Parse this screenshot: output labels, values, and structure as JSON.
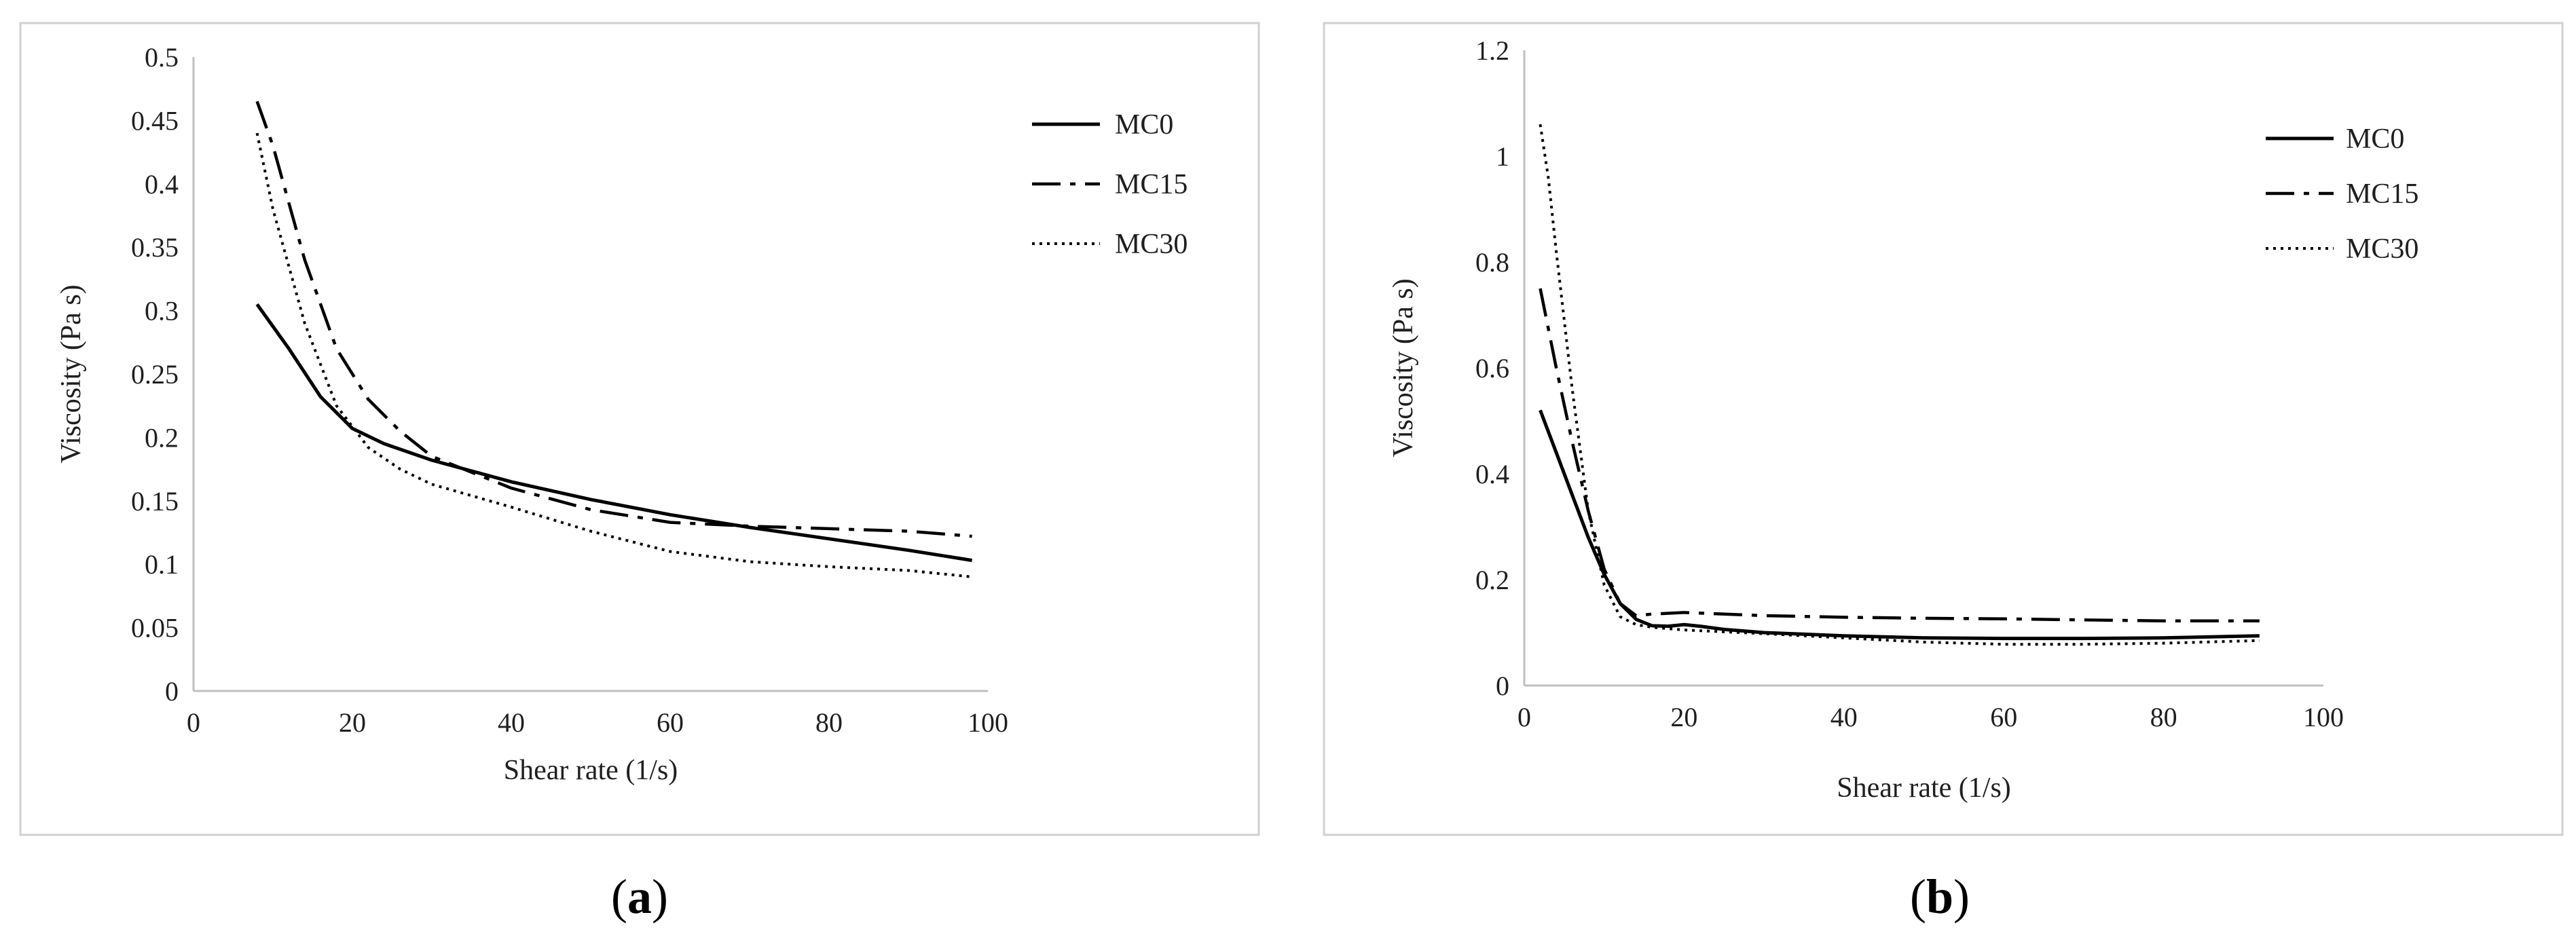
{
  "chart_data": [
    {
      "type": "line",
      "panel_label": "a",
      "title": "",
      "xlabel": "Shear rate (1/s)",
      "ylabel": "Viscosity (Pa s)",
      "xlim": [
        0,
        100
      ],
      "ylim": [
        0,
        0.5
      ],
      "xticks": [
        0,
        20,
        40,
        60,
        80,
        100
      ],
      "yticks": [
        0,
        0.05,
        0.1,
        0.15,
        0.2,
        0.25,
        0.3,
        0.35,
        0.4,
        0.45,
        0.5
      ],
      "xtick_labels": [
        "0",
        "20",
        "40",
        "60",
        "80",
        "100"
      ],
      "ytick_labels": [
        "0",
        "0.05",
        "0.1",
        "0.15",
        "0.2",
        "0.25",
        "0.3",
        "0.35",
        "0.4",
        "0.45",
        "0.5"
      ],
      "grid": false,
      "legend_position": "top-right",
      "series": [
        {
          "name": "MC0",
          "style": "solid",
          "x": [
            8,
            12,
            16,
            20,
            24,
            30,
            40,
            50,
            60,
            70,
            80,
            90,
            98
          ],
          "y": [
            0.305,
            0.27,
            0.232,
            0.207,
            0.195,
            0.182,
            0.165,
            0.151,
            0.139,
            0.129,
            0.12,
            0.111,
            0.103
          ]
        },
        {
          "name": "MC15",
          "style": "dashdot",
          "x": [
            8,
            10,
            14,
            18,
            22,
            26,
            30,
            40,
            50,
            60,
            70,
            80,
            90,
            98
          ],
          "y": [
            0.465,
            0.43,
            0.34,
            0.27,
            0.23,
            0.205,
            0.185,
            0.16,
            0.143,
            0.133,
            0.13,
            0.128,
            0.126,
            0.122
          ]
        },
        {
          "name": "MC30",
          "style": "dotted",
          "x": [
            8,
            10,
            14,
            18,
            22,
            26,
            30,
            40,
            50,
            60,
            70,
            80,
            90,
            98
          ],
          "y": [
            0.44,
            0.38,
            0.29,
            0.225,
            0.192,
            0.175,
            0.163,
            0.145,
            0.126,
            0.11,
            0.102,
            0.098,
            0.095,
            0.09
          ]
        }
      ]
    },
    {
      "type": "line",
      "panel_label": "b",
      "title": "",
      "xlabel": "Shear rate (1/s)",
      "ylabel": "Viscosity (Pa s)",
      "xlim": [
        0,
        100
      ],
      "ylim": [
        0,
        1.2
      ],
      "xticks": [
        0,
        20,
        40,
        60,
        80,
        100
      ],
      "yticks": [
        0,
        0.2,
        0.4,
        0.6,
        0.8,
        1,
        1.2
      ],
      "xtick_labels": [
        "0",
        "20",
        "40",
        "60",
        "80",
        "100"
      ],
      "ytick_labels": [
        "0",
        "0.2",
        "0.4",
        "0.6",
        "0.8",
        "1",
        "1.2"
      ],
      "grid": false,
      "legend_position": "top-right",
      "series": [
        {
          "name": "MC0",
          "style": "solid",
          "x": [
            2,
            4,
            6,
            8,
            10,
            12,
            14,
            16,
            18,
            20,
            22,
            25,
            30,
            40,
            50,
            60,
            70,
            80,
            92
          ],
          "y": [
            0.52,
            0.44,
            0.36,
            0.28,
            0.21,
            0.155,
            0.125,
            0.113,
            0.112,
            0.115,
            0.112,
            0.106,
            0.1,
            0.094,
            0.09,
            0.089,
            0.089,
            0.09,
            0.094
          ]
        },
        {
          "name": "MC15",
          "style": "dashdot",
          "x": [
            2,
            4,
            6,
            8,
            10,
            12,
            14,
            16,
            20,
            30,
            40,
            50,
            60,
            70,
            80,
            92
          ],
          "y": [
            0.75,
            0.6,
            0.46,
            0.33,
            0.22,
            0.155,
            0.132,
            0.135,
            0.138,
            0.132,
            0.129,
            0.127,
            0.126,
            0.124,
            0.122,
            0.122
          ]
        },
        {
          "name": "MC30",
          "style": "dotted",
          "x": [
            2,
            3,
            4,
            6,
            8,
            10,
            12,
            14,
            16,
            20,
            30,
            40,
            50,
            60,
            70,
            80,
            92
          ],
          "y": [
            1.06,
            0.96,
            0.82,
            0.56,
            0.33,
            0.19,
            0.13,
            0.115,
            0.11,
            0.105,
            0.098,
            0.09,
            0.082,
            0.078,
            0.078,
            0.08,
            0.085
          ]
        }
      ]
    }
  ]
}
